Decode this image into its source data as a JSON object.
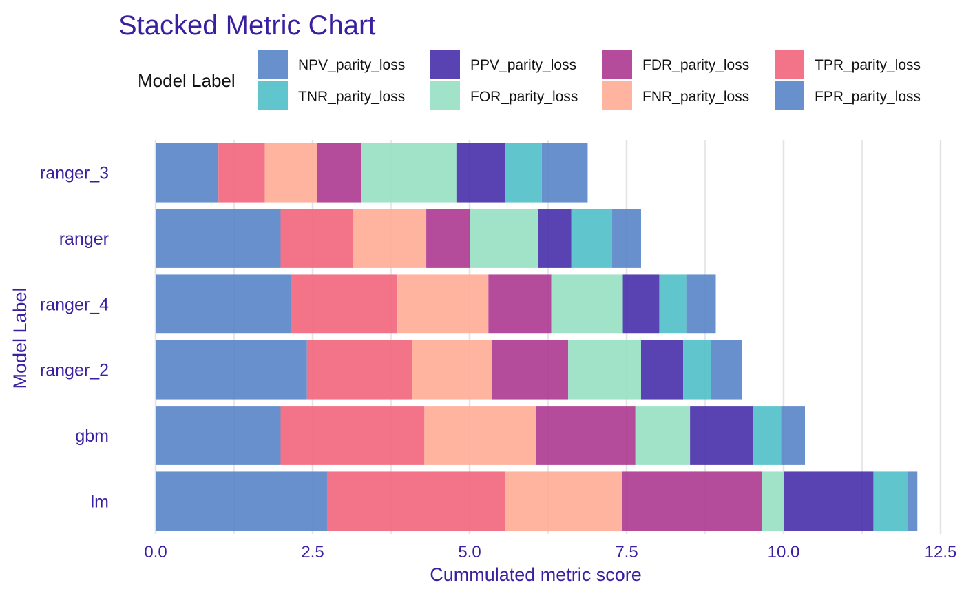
{
  "chart_data": {
    "type": "bar",
    "orientation": "horizontal",
    "stacked": true,
    "title": "Stacked Metric Chart",
    "xlabel": "Cummulated metric score",
    "ylabel": "Model Label",
    "legend_title": "Model Label",
    "legend_position": "top",
    "xlim": [
      0,
      12.5
    ],
    "xticks": [
      0,
      2.5,
      5,
      7.5,
      10,
      12.5
    ],
    "xtick_labels": [
      "0.0",
      "2.5",
      "5.0",
      "7.5",
      "10.0",
      "12.5"
    ],
    "grid": true,
    "categories": [
      "ranger_3",
      "ranger",
      "ranger_4",
      "ranger_2",
      "gbm",
      "lm"
    ],
    "series": [
      {
        "name": "NPV_parity_loss",
        "color": "#5A87C8",
        "values": [
          1.0,
          1.99,
          2.15,
          2.41,
          1.99,
          2.73
        ]
      },
      {
        "name": "TPR_parity_loss",
        "color": "#F2687E",
        "values": [
          0.74,
          1.16,
          1.7,
          1.68,
          2.29,
          2.84
        ]
      },
      {
        "name": "FNR_parity_loss",
        "color": "#FFAE98",
        "values": [
          0.83,
          1.16,
          1.45,
          1.26,
          1.78,
          1.86
        ]
      },
      {
        "name": "FDR_parity_loss",
        "color": "#AE3C92",
        "values": [
          0.7,
          0.7,
          1.0,
          1.22,
          1.58,
          2.22
        ]
      },
      {
        "name": "FOR_parity_loss",
        "color": "#98E1C4",
        "values": [
          1.52,
          1.08,
          1.14,
          1.16,
          0.87,
          0.35
        ]
      },
      {
        "name": "PPV_parity_loss",
        "color": "#4B32AA",
        "values": [
          0.77,
          0.53,
          0.58,
          0.67,
          1.01,
          1.43
        ]
      },
      {
        "name": "TNR_parity_loss",
        "color": "#52C0C8",
        "values": [
          0.59,
          0.65,
          0.43,
          0.44,
          0.44,
          0.54
        ]
      },
      {
        "name": "FPR_parity_loss",
        "color": "#5A87C8",
        "values": [
          0.73,
          0.46,
          0.47,
          0.5,
          0.38,
          0.16
        ]
      }
    ],
    "legend_order": [
      "NPV_parity_loss",
      "PPV_parity_loss",
      "FDR_parity_loss",
      "TPR_parity_loss",
      "TNR_parity_loss",
      "FOR_parity_loss",
      "FNR_parity_loss",
      "FPR_parity_loss"
    ]
  },
  "colors": {
    "text_accent": "#3A1FA0",
    "grid": "#E3E3E3",
    "legend_text": "#111111"
  }
}
